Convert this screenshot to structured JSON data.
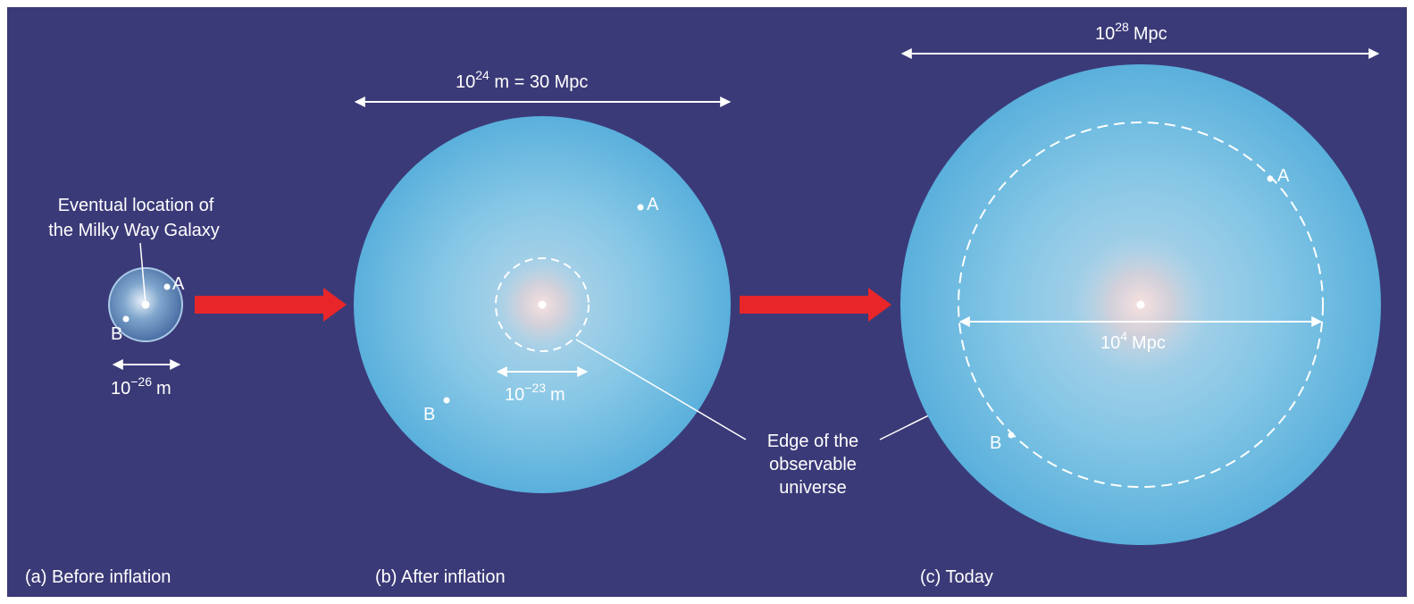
{
  "panels": {
    "a": {
      "caption": "(a) Before inflation",
      "callout_line1": "Eventual location of",
      "callout_line2": "the Milky Way Galaxy",
      "point_a": "A",
      "point_b": "B",
      "scale_base": "10",
      "scale_exp": "−26",
      "scale_unit": "m"
    },
    "b": {
      "caption": "(b) After inflation",
      "top_base": "10",
      "top_exp": "24",
      "top_rest": " m = 30 Mpc",
      "scale_base": "10",
      "scale_exp": "−23",
      "scale_unit": "m",
      "point_a": "A",
      "point_b": "B"
    },
    "c": {
      "caption": "(c) Today",
      "top_base": "10",
      "top_exp": "28",
      "top_unit": "Mpc",
      "inner_base": "10",
      "inner_exp": "4",
      "inner_unit": "Mpc",
      "point_a": "A",
      "point_b": "B"
    }
  },
  "edge_label": [
    "Edge of the",
    "observable",
    "universe"
  ],
  "colors": {
    "background": "#3b3a78",
    "sphere_light": "#7ec9e8",
    "sphere_dark": "#4fa8d6",
    "arrow": "#e8262a",
    "line": "#ffffff"
  }
}
